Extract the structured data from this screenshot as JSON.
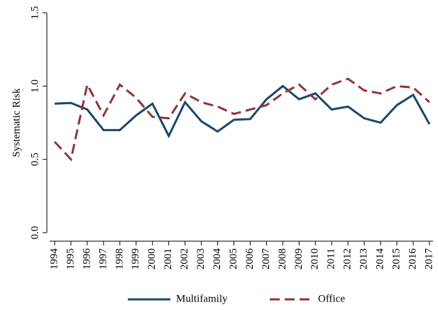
{
  "chart_data": {
    "type": "line",
    "y_label": "Systematic Risk",
    "categories": [
      "1994",
      "1995",
      "1996",
      "1997",
      "1998",
      "1999",
      "2000",
      "2001",
      "2002",
      "2003",
      "2004",
      "2005",
      "2006",
      "2007",
      "2008",
      "2009",
      "2010",
      "2011",
      "2012",
      "2013",
      "2014",
      "2015",
      "2016",
      "2017"
    ],
    "series": [
      {
        "name": "Multifamily",
        "color": "#1a476f",
        "dash": "solid",
        "values": [
          0.88,
          0.885,
          0.84,
          0.7,
          0.7,
          0.8,
          0.88,
          0.66,
          0.89,
          0.76,
          0.69,
          0.77,
          0.775,
          0.91,
          1.0,
          0.91,
          0.95,
          0.84,
          0.86,
          0.78,
          0.75,
          0.87,
          0.94,
          0.74
        ]
      },
      {
        "name": "Office",
        "color": "#90353b",
        "dash": "dashed",
        "values": [
          0.62,
          0.5,
          1.01,
          0.8,
          1.01,
          0.92,
          0.79,
          0.78,
          0.95,
          0.89,
          0.86,
          0.81,
          0.84,
          0.87,
          0.95,
          1.01,
          0.91,
          1.01,
          1.05,
          0.97,
          0.95,
          1.0,
          0.99,
          0.89
        ]
      }
    ],
    "ylim": [
      0,
      1.5
    ],
    "yticks": [
      {
        "value": 0,
        "label": "0.0"
      },
      {
        "value": 0.5,
        "label": "0.5"
      },
      {
        "value": 1,
        "label": "1.0"
      },
      {
        "value": 1.5,
        "label": "1.5"
      }
    ],
    "legend": "bottom"
  }
}
